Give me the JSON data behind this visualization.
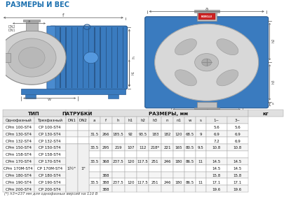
{
  "title": "РАЗМЕРЫ И ВЕС",
  "title_color": "#1a6faf",
  "col_headers": [
    "Однофазный",
    "Трехфазный",
    "DN1",
    "DN2",
    "a",
    "f",
    "h",
    "h1",
    "h2",
    "h3",
    "n",
    "n1",
    "w",
    "s",
    "1~",
    "3~"
  ],
  "row_data": [
    [
      "CPm 100-ST4",
      "CP 100-ST4",
      "",
      "",
      "",
      "",
      "",
      "",
      "",
      "",
      "",
      "",
      "",
      "",
      "5.6",
      "5.6"
    ],
    [
      "CPm 130-ST4",
      "CP 130-ST4",
      "",
      "",
      "31.5",
      "266",
      "185.5",
      "92",
      "93.5",
      "183",
      "182",
      "120",
      "68.5",
      "9",
      "6.9",
      "6.9"
    ],
    [
      "CPm 132-ST4",
      "CP 132-ST4",
      "",
      "",
      "",
      "",
      "",
      "",
      "",
      "",
      "",
      "",
      "",
      "",
      "7.2",
      "6.9"
    ],
    [
      "CPm 150-ST4",
      "CP 150-ST4",
      "",
      "",
      "33.5",
      "295",
      "219",
      "107",
      "112",
      "218*",
      "221",
      "165",
      "80.5",
      "9.5",
      "10.8",
      "10.8"
    ],
    [
      "CPm 158-ST4",
      "CP 158-ST4",
      "",
      "",
      "",
      "",
      "",
      "",
      "",
      "",
      "",
      "",
      "",
      "",
      "",
      ""
    ],
    [
      "CPm 170-ST4",
      "CP 170-ST4",
      "",
      "",
      "33.5",
      "368",
      "237.5",
      "120",
      "117.5",
      "251",
      "246",
      "180",
      "86.5",
      "11",
      "14.5",
      "14.5"
    ],
    [
      "CPm 170M-ST4",
      "CP 170M-ST4",
      "",
      "",
      "",
      "",
      "",
      "",
      "",
      "",
      "",
      "",
      "",
      "",
      "14.5",
      "14.5"
    ],
    [
      "CPm 180-ST4",
      "CP 180-ST4",
      "",
      "",
      "",
      "388",
      "",
      "",
      "",
      "",
      "",
      "",
      "",
      "",
      "15.8",
      "15.8"
    ],
    [
      "CPm 190-ST4",
      "CP 190-ST4",
      "",
      "",
      "33.5",
      "388",
      "237.5",
      "120",
      "117.5",
      "251",
      "246",
      "180",
      "86.5",
      "11",
      "17.1",
      "17.1"
    ],
    [
      "CPm 200-ST4",
      "CP 200-ST4",
      "",
      "",
      "",
      "388",
      "",
      "",
      "",
      "",
      "",
      "",
      "",
      "",
      "19.6",
      "19.6"
    ]
  ],
  "footnote": "(*) h3=237 мм для однофазных версий на 110 В",
  "bg_color": "#ffffff",
  "motor_blue": "#3a7bbf",
  "motor_dark": "#2a5a8f",
  "pump_gray": "#d0d0d0",
  "pump_gray2": "#c0c0c0"
}
